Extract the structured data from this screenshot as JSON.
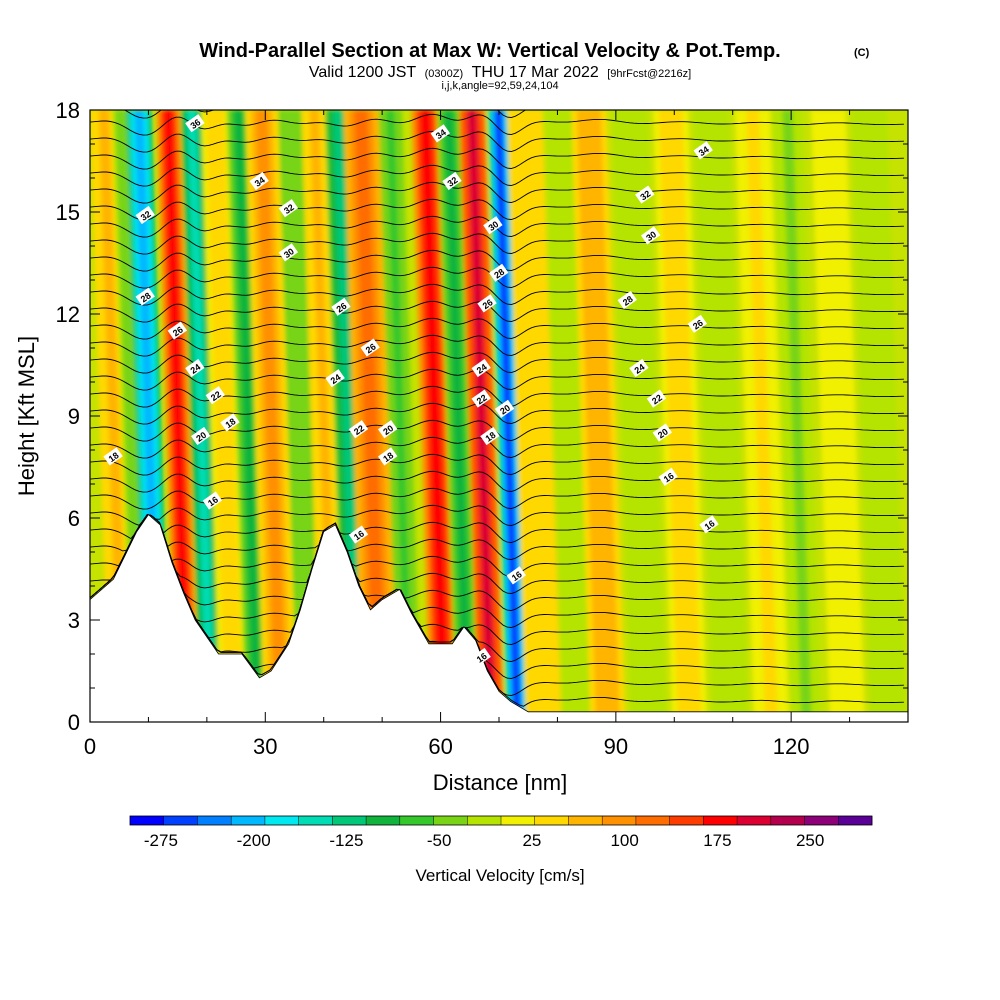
{
  "figure": {
    "title": "Wind-Parallel Section at Max W: Vertical Velocity & Pot.Temp.",
    "title_mark": "(C)",
    "subtitle_parts": {
      "valid": "Valid 1200 JST",
      "utc": "(0300Z)",
      "date": "THU 17 Mar 2022",
      "fcst": "[9hrFcst@2216z]"
    },
    "indices": "i,j,k,angle=92,59,24,104"
  },
  "chart_data": {
    "type": "heatmap",
    "xlabel": "Distance [nm]",
    "ylabel": "Height [Kft MSL]",
    "xlim": [
      0,
      140
    ],
    "ylim": [
      0,
      18
    ],
    "x_ticks": [
      0,
      30,
      60,
      90,
      120
    ],
    "y_ticks": [
      0,
      3,
      6,
      9,
      12,
      15,
      18
    ],
    "grid": false,
    "terrain_top_kft": [
      {
        "x": 0,
        "h": 3.6
      },
      {
        "x": 4,
        "h": 4.2
      },
      {
        "x": 8,
        "h": 5.6
      },
      {
        "x": 10,
        "h": 6.1
      },
      {
        "x": 12,
        "h": 5.8
      },
      {
        "x": 14,
        "h": 4.7
      },
      {
        "x": 16,
        "h": 3.8
      },
      {
        "x": 18,
        "h": 3.0
      },
      {
        "x": 20,
        "h": 2.5
      },
      {
        "x": 22,
        "h": 2.0
      },
      {
        "x": 26,
        "h": 2.0
      },
      {
        "x": 29,
        "h": 1.3
      },
      {
        "x": 31,
        "h": 1.5
      },
      {
        "x": 34,
        "h": 2.3
      },
      {
        "x": 36,
        "h": 3.3
      },
      {
        "x": 38,
        "h": 4.5
      },
      {
        "x": 40,
        "h": 5.6
      },
      {
        "x": 42,
        "h": 5.8
      },
      {
        "x": 44,
        "h": 5.0
      },
      {
        "x": 46,
        "h": 4.0
      },
      {
        "x": 48,
        "h": 3.3
      },
      {
        "x": 50,
        "h": 3.6
      },
      {
        "x": 53,
        "h": 3.9
      },
      {
        "x": 55,
        "h": 3.2
      },
      {
        "x": 58,
        "h": 2.3
      },
      {
        "x": 62,
        "h": 2.3
      },
      {
        "x": 64,
        "h": 2.8
      },
      {
        "x": 66,
        "h": 2.4
      },
      {
        "x": 68,
        "h": 1.5
      },
      {
        "x": 70,
        "h": 0.9
      },
      {
        "x": 72,
        "h": 0.6
      },
      {
        "x": 75,
        "h": 0.3
      },
      {
        "x": 140,
        "h": 0.3
      }
    ],
    "vertical_velocity_bands": [
      {
        "x": 4,
        "width": 2.4,
        "w_cms": 60
      },
      {
        "x": 7,
        "width": 1.6,
        "w_cms": -40
      },
      {
        "x": 10,
        "width": 2.2,
        "w_cms": -210
      },
      {
        "x": 15,
        "width": 2.0,
        "w_cms": 185
      },
      {
        "x": 19,
        "width": 1.8,
        "w_cms": -150
      },
      {
        "x": 23,
        "width": 2.4,
        "w_cms": 40
      },
      {
        "x": 27,
        "width": 2.0,
        "w_cms": -90
      },
      {
        "x": 31,
        "width": 2.8,
        "w_cms": 90
      },
      {
        "x": 36,
        "width": 2.2,
        "w_cms": -50
      },
      {
        "x": 40,
        "width": 2.2,
        "w_cms": 60
      },
      {
        "x": 44,
        "width": 2.2,
        "w_cms": -130
      },
      {
        "x": 48,
        "width": 3.0,
        "w_cms": 120
      },
      {
        "x": 53,
        "width": 2.0,
        "w_cms": -60
      },
      {
        "x": 59,
        "width": 2.4,
        "w_cms": 180
      },
      {
        "x": 63,
        "width": 2.0,
        "w_cms": -90
      },
      {
        "x": 67,
        "width": 2.2,
        "w_cms": 200
      },
      {
        "x": 71.5,
        "width": 1.8,
        "w_cms": -260
      },
      {
        "x": 76,
        "width": 3.0,
        "w_cms": 50
      },
      {
        "x": 82,
        "width": 2.5,
        "w_cms": -20
      },
      {
        "x": 87,
        "width": 3.0,
        "w_cms": 80
      },
      {
        "x": 94,
        "width": 3.0,
        "w_cms": -20
      },
      {
        "x": 101,
        "width": 3.0,
        "w_cms": 40
      },
      {
        "x": 108,
        "width": 3.0,
        "w_cms": -20
      },
      {
        "x": 115,
        "width": 3.0,
        "w_cms": 30
      },
      {
        "x": 121,
        "width": 2.5,
        "w_cms": -30
      },
      {
        "x": 128,
        "width": 3.0,
        "w_cms": 20
      },
      {
        "x": 135,
        "width": 3.0,
        "w_cms": -20
      }
    ],
    "theta_contour_labels": [
      {
        "x": 18,
        "y": 17.6,
        "label": "36"
      },
      {
        "x": 29,
        "y": 15.9,
        "label": "34"
      },
      {
        "x": 60,
        "y": 17.3,
        "label": "34"
      },
      {
        "x": 105,
        "y": 16.8,
        "label": "34"
      },
      {
        "x": 9.5,
        "y": 14.9,
        "label": "32"
      },
      {
        "x": 34,
        "y": 15.1,
        "label": "32"
      },
      {
        "x": 62,
        "y": 15.9,
        "label": "32"
      },
      {
        "x": 95,
        "y": 15.5,
        "label": "32"
      },
      {
        "x": 34,
        "y": 13.8,
        "label": "30"
      },
      {
        "x": 69,
        "y": 14.6,
        "label": "30"
      },
      {
        "x": 96,
        "y": 14.3,
        "label": "30"
      },
      {
        "x": 9.5,
        "y": 12.5,
        "label": "28"
      },
      {
        "x": 70,
        "y": 13.2,
        "label": "28"
      },
      {
        "x": 92,
        "y": 12.4,
        "label": "28"
      },
      {
        "x": 43,
        "y": 12.2,
        "label": "26"
      },
      {
        "x": 68,
        "y": 12.3,
        "label": "26"
      },
      {
        "x": 104,
        "y": 11.7,
        "label": "26"
      },
      {
        "x": 15,
        "y": 11.5,
        "label": "26"
      },
      {
        "x": 48,
        "y": 11.0,
        "label": "26"
      },
      {
        "x": 18,
        "y": 10.4,
        "label": "24"
      },
      {
        "x": 42,
        "y": 10.1,
        "label": "24"
      },
      {
        "x": 67,
        "y": 10.4,
        "label": "24"
      },
      {
        "x": 94,
        "y": 10.4,
        "label": "24"
      },
      {
        "x": 21.5,
        "y": 9.6,
        "label": "22"
      },
      {
        "x": 46,
        "y": 8.6,
        "label": "22"
      },
      {
        "x": 67,
        "y": 9.5,
        "label": "22"
      },
      {
        "x": 97,
        "y": 9.5,
        "label": "22"
      },
      {
        "x": 71,
        "y": 9.2,
        "label": "20"
      },
      {
        "x": 19,
        "y": 8.4,
        "label": "20"
      },
      {
        "x": 51,
        "y": 8.6,
        "label": "20"
      },
      {
        "x": 98,
        "y": 8.5,
        "label": "20"
      },
      {
        "x": 24,
        "y": 8.8,
        "label": "18"
      },
      {
        "x": 4,
        "y": 7.8,
        "label": "18"
      },
      {
        "x": 51,
        "y": 7.8,
        "label": "18"
      },
      {
        "x": 68.5,
        "y": 8.4,
        "label": "18"
      },
      {
        "x": 21,
        "y": 6.5,
        "label": "16"
      },
      {
        "x": 46,
        "y": 5.5,
        "label": "16"
      },
      {
        "x": 73,
        "y": 4.3,
        "label": "16"
      },
      {
        "x": 67,
        "y": 1.9,
        "label": "16"
      },
      {
        "x": 99,
        "y": 7.2,
        "label": "16"
      },
      {
        "x": 106,
        "y": 5.8,
        "label": "16"
      }
    ]
  },
  "colorbar": {
    "label": "Vertical Velocity [cm/s]",
    "ticks": [
      "-275",
      "-200",
      "-125",
      "-50",
      "25",
      "100",
      "175",
      "250"
    ],
    "min": -300,
    "max": 300,
    "colors": [
      "#0000ff",
      "#0040ff",
      "#0080ff",
      "#00b8ff",
      "#00e8f0",
      "#00dcb4",
      "#00c878",
      "#10b43c",
      "#34c82a",
      "#78d414",
      "#b4e400",
      "#f0f000",
      "#ffd800",
      "#ffb400",
      "#ff9000",
      "#ff6c00",
      "#ff3c00",
      "#ff0000",
      "#dc0032",
      "#b4004c",
      "#8c0078",
      "#5a0096"
    ]
  }
}
